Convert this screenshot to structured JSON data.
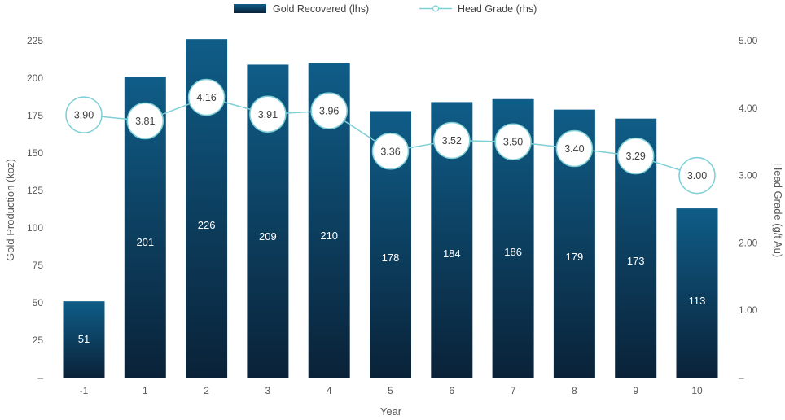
{
  "chart_data": {
    "type": "bar",
    "xlabel": "Year",
    "ylabel": "Gold Production (koz)",
    "y2label": "Head Grade (g/t Au)",
    "categories": [
      "-1",
      "1",
      "2",
      "3",
      "4",
      "5",
      "6",
      "7",
      "8",
      "9",
      "10"
    ],
    "series": [
      {
        "name": "Gold Recovered (lhs)",
        "kind": "bar",
        "axis": "left",
        "values": [
          51,
          201,
          226,
          209,
          210,
          178,
          184,
          186,
          179,
          173,
          113
        ]
      },
      {
        "name": "Head Grade (rhs)",
        "kind": "line",
        "axis": "right",
        "values": [
          3.9,
          3.81,
          4.16,
          3.91,
          3.96,
          3.36,
          3.52,
          3.5,
          3.4,
          3.29,
          3.0
        ]
      }
    ],
    "y_ticks": [
      "–",
      "25",
      "50",
      "75",
      "100",
      "125",
      "150",
      "175",
      "200",
      "225"
    ],
    "y2_ticks": [
      "–",
      "1.00",
      "2.00",
      "3.00",
      "4.00",
      "5.00"
    ],
    "ylim": [
      0,
      225
    ],
    "y2lim": [
      0,
      5
    ],
    "grid": false,
    "legend_position": "top-center",
    "colors": {
      "bar_top": "#0f5d88",
      "bar_bottom": "#0a2238",
      "line": "#7ecfd6",
      "marker_fill": "#ffffff",
      "text": "#595959"
    }
  }
}
